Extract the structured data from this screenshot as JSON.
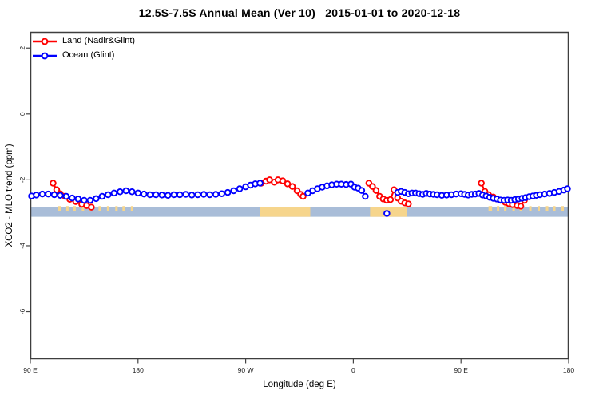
{
  "title": "12.5S-7.5S Annual Mean (Ver 10)   2015-01-01 to 2020-12-18",
  "chart_data": {
    "type": "scatter-line",
    "title": "12.5S-7.5S Annual Mean (Ver 10)   2015-01-01 to 2020-12-18",
    "xlabel": "Longitude (deg E)",
    "ylabel": "XCO2 - MLO trend (ppm)",
    "xlim": [
      90,
      540
    ],
    "ylim": [
      -7.44,
      2.49
    ],
    "grid": false,
    "legend_position": "top-left",
    "x_note": "longitude plotted continuously eastward from 90E; values above 360 wrap (450=90E, 540=180); 90E-180E data repeated at right end",
    "x_ticks": [
      {
        "value": 90,
        "label": "90 E"
      },
      {
        "value": 180,
        "label": "180"
      },
      {
        "value": 270,
        "label": "90 W"
      },
      {
        "value": 360,
        "label": "0"
      },
      {
        "value": 450,
        "label": "90 E"
      },
      {
        "value": 540,
        "label": "180"
      }
    ],
    "y_ticks": [
      {
        "value": 2,
        "label": "2"
      },
      {
        "value": 0,
        "label": "0"
      },
      {
        "value": -2,
        "label": "-2"
      },
      {
        "value": -4,
        "label": "-4"
      },
      {
        "value": -6,
        "label": "-6"
      }
    ],
    "series": [
      {
        "name": "Land (Nadir&Glint)",
        "color": "#ff0000",
        "marker": "open-circle",
        "segments": [
          [
            [
              109,
              -2.1
            ],
            [
              112,
              -2.3
            ],
            [
              115,
              -2.42
            ],
            [
              119,
              -2.5
            ],
            [
              123,
              -2.59
            ],
            [
              128,
              -2.66
            ],
            [
              133,
              -2.74
            ],
            [
              137,
              -2.78
            ],
            [
              141,
              -2.83
            ]
          ],
          [
            [
              283,
              -2.1
            ],
            [
              287,
              -2.04
            ],
            [
              290,
              -2.0
            ],
            [
              294,
              -2.07
            ],
            [
              297,
              -2.0
            ],
            [
              301,
              -2.03
            ],
            [
              305,
              -2.12
            ],
            [
              309,
              -2.2
            ],
            [
              313,
              -2.33
            ],
            [
              316,
              -2.44
            ],
            [
              318,
              -2.5
            ]
          ],
          [
            [
              373,
              -2.1
            ],
            [
              376,
              -2.2
            ],
            [
              379,
              -2.32
            ],
            [
              382,
              -2.5
            ],
            [
              385,
              -2.58
            ],
            [
              388,
              -2.62
            ],
            [
              391,
              -2.6
            ],
            [
              394,
              -2.3
            ],
            [
              397,
              -2.55
            ],
            [
              400,
              -2.65
            ],
            [
              403,
              -2.7
            ],
            [
              406,
              -2.73
            ]
          ],
          [
            [
              467,
              -2.1
            ],
            [
              470,
              -2.35
            ],
            [
              473,
              -2.45
            ],
            [
              477,
              -2.52
            ],
            [
              480,
              -2.58
            ],
            [
              483,
              -2.62
            ],
            [
              487,
              -2.68
            ],
            [
              490,
              -2.72
            ],
            [
              493,
              -2.75
            ],
            [
              497,
              -2.78
            ],
            [
              500,
              -2.8
            ],
            [
              503,
              -2.62
            ]
          ]
        ]
      },
      {
        "name": "Ocean (Glint)",
        "color": "#0000ff",
        "marker": "open-circle",
        "segments": [
          [
            [
              91,
              -2.49
            ],
            [
              95,
              -2.46
            ],
            [
              100,
              -2.43
            ],
            [
              105,
              -2.43
            ],
            [
              110,
              -2.45
            ],
            [
              115,
              -2.47
            ],
            [
              120,
              -2.5
            ],
            [
              125,
              -2.55
            ],
            [
              130,
              -2.58
            ],
            [
              135,
              -2.62
            ],
            [
              140,
              -2.62
            ],
            [
              145,
              -2.57
            ],
            [
              150,
              -2.5
            ],
            [
              155,
              -2.45
            ],
            [
              160,
              -2.4
            ],
            [
              165,
              -2.36
            ],
            [
              170,
              -2.33
            ],
            [
              175,
              -2.36
            ],
            [
              180,
              -2.4
            ],
            [
              185,
              -2.43
            ],
            [
              190,
              -2.45
            ],
            [
              195,
              -2.45
            ],
            [
              200,
              -2.46
            ],
            [
              205,
              -2.47
            ],
            [
              210,
              -2.45
            ],
            [
              215,
              -2.45
            ],
            [
              220,
              -2.44
            ],
            [
              225,
              -2.46
            ],
            [
              230,
              -2.45
            ],
            [
              235,
              -2.44
            ],
            [
              240,
              -2.45
            ],
            [
              245,
              -2.44
            ],
            [
              250,
              -2.42
            ],
            [
              255,
              -2.38
            ],
            [
              260,
              -2.33
            ],
            [
              265,
              -2.27
            ],
            [
              270,
              -2.21
            ],
            [
              274,
              -2.16
            ],
            [
              278,
              -2.12
            ],
            [
              282,
              -2.1
            ]
          ],
          [
            [
              322,
              -2.4
            ],
            [
              326,
              -2.33
            ],
            [
              330,
              -2.27
            ],
            [
              334,
              -2.22
            ],
            [
              338,
              -2.18
            ],
            [
              342,
              -2.15
            ],
            [
              346,
              -2.13
            ],
            [
              350,
              -2.13
            ],
            [
              354,
              -2.14
            ],
            [
              358,
              -2.13
            ],
            [
              361,
              -2.22
            ],
            [
              364,
              -2.25
            ],
            [
              367,
              -2.32
            ],
            [
              370,
              -2.5
            ]
          ],
          [
            [
              397,
              -2.38
            ],
            [
              400,
              -2.35
            ],
            [
              403,
              -2.38
            ],
            [
              406,
              -2.42
            ],
            [
              409,
              -2.4
            ],
            [
              412,
              -2.4
            ],
            [
              415,
              -2.42
            ],
            [
              418,
              -2.44
            ],
            [
              421,
              -2.41
            ],
            [
              424,
              -2.43
            ],
            [
              427,
              -2.44
            ],
            [
              430,
              -2.45
            ],
            [
              434,
              -2.47
            ],
            [
              438,
              -2.46
            ],
            [
              442,
              -2.45
            ],
            [
              446,
              -2.43
            ],
            [
              450,
              -2.42
            ],
            [
              453,
              -2.44
            ],
            [
              456,
              -2.46
            ],
            [
              459,
              -2.44
            ],
            [
              462,
              -2.43
            ],
            [
              465,
              -2.41
            ],
            [
              468,
              -2.46
            ],
            [
              471,
              -2.49
            ],
            [
              474,
              -2.53
            ],
            [
              477,
              -2.56
            ],
            [
              480,
              -2.58
            ],
            [
              483,
              -2.61
            ],
            [
              486,
              -2.62
            ],
            [
              489,
              -2.61
            ],
            [
              492,
              -2.62
            ],
            [
              495,
              -2.6
            ],
            [
              498,
              -2.58
            ],
            [
              501,
              -2.56
            ],
            [
              504,
              -2.54
            ],
            [
              507,
              -2.51
            ],
            [
              510,
              -2.49
            ],
            [
              513,
              -2.47
            ],
            [
              516,
              -2.45
            ],
            [
              520,
              -2.43
            ],
            [
              524,
              -2.41
            ],
            [
              528,
              -2.38
            ],
            [
              532,
              -2.35
            ],
            [
              536,
              -2.31
            ],
            [
              539,
              -2.27
            ]
          ]
        ],
        "outlier_points": [
          [
            388,
            -3.02
          ]
        ]
      }
    ],
    "map_strip": {
      "description": "land/ocean map band for the 12.5S-7.5S latitude strip",
      "value_top": -2.82,
      "value_bottom": -3.12,
      "ocean_color": "#a9bdd8",
      "land_color": "#f6d58c",
      "land_segments_lon": [
        [
          113,
          116
        ],
        [
          120,
          122
        ],
        [
          126,
          128
        ],
        [
          133,
          135
        ],
        [
          139,
          141
        ],
        [
          147,
          149
        ],
        [
          154,
          156
        ],
        [
          161,
          163
        ],
        [
          167,
          169
        ],
        [
          174,
          176
        ],
        [
          282,
          324
        ],
        [
          374,
          405
        ],
        [
          473,
          476
        ],
        [
          480,
          482
        ],
        [
          486,
          488
        ],
        [
          493,
          495
        ],
        [
          499,
          501
        ],
        [
          507,
          509
        ],
        [
          514,
          516
        ],
        [
          521,
          523
        ],
        [
          527,
          529
        ],
        [
          534,
          536
        ]
      ]
    }
  }
}
